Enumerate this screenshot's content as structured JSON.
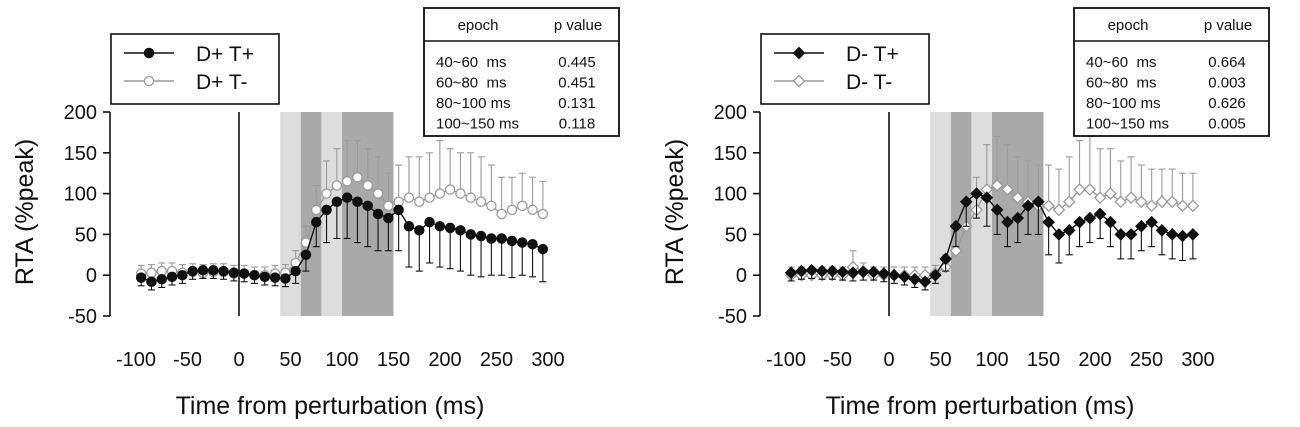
{
  "colors": {
    "ink": "#111111",
    "filled_series": "#111111",
    "open_series": "#9a9a9a",
    "shade_light": "#dddddd",
    "shade_dark": "#a9a9a9"
  },
  "chart_data": [
    {
      "type": "line",
      "xlabel": "Time from perturbation (ms)",
      "ylabel": "RTA (%peak)",
      "xlim": [
        -100,
        300
      ],
      "ylim": [
        -50,
        200
      ],
      "xticks": [
        -100,
        -50,
        0,
        50,
        100,
        150,
        200,
        250,
        300
      ],
      "yticks": [
        200,
        150,
        100,
        50,
        0,
        -50
      ],
      "epoch_shading": [
        {
          "from": 40,
          "to": 60,
          "tone": "light"
        },
        {
          "from": 60,
          "to": 80,
          "tone": "dark"
        },
        {
          "from": 80,
          "to": 100,
          "tone": "light"
        },
        {
          "from": 100,
          "to": 150,
          "tone": "dark"
        }
      ],
      "legend": [
        {
          "label": "D+ T+",
          "marker": "circle",
          "fill": "filled"
        },
        {
          "label": "D+ T-",
          "marker": "circle",
          "fill": "open"
        }
      ],
      "table": {
        "headers": [
          "epoch",
          "p value"
        ],
        "rows": [
          [
            "40~60  ms",
            "0.445"
          ],
          [
            "60~80  ms",
            "0.451"
          ],
          [
            "80~100 ms",
            "0.131"
          ],
          [
            "100~150 ms",
            "0.118"
          ]
        ]
      },
      "x": [
        -95,
        -85,
        -75,
        -65,
        -55,
        -45,
        -35,
        -25,
        -15,
        -5,
        5,
        15,
        25,
        35,
        45,
        55,
        65,
        75,
        85,
        95,
        105,
        115,
        125,
        135,
        145,
        155,
        165,
        175,
        185,
        195,
        205,
        215,
        225,
        235,
        245,
        255,
        265,
        275,
        285,
        295
      ],
      "series": [
        {
          "name": "D+ T+",
          "marker": "circle",
          "fill": "filled",
          "values": [
            -3,
            -8,
            -5,
            -2,
            0,
            5,
            6,
            6,
            5,
            3,
            2,
            0,
            -2,
            -3,
            -4,
            5,
            25,
            65,
            80,
            90,
            95,
            90,
            85,
            75,
            70,
            80,
            60,
            55,
            65,
            60,
            58,
            55,
            50,
            48,
            45,
            45,
            42,
            40,
            38,
            32
          ],
          "err": [
            10,
            10,
            10,
            10,
            10,
            10,
            10,
            10,
            10,
            10,
            10,
            10,
            10,
            10,
            10,
            15,
            20,
            30,
            40,
            45,
            50,
            50,
            50,
            45,
            40,
            50,
            50,
            50,
            50,
            50,
            50,
            50,
            50,
            50,
            45,
            45,
            45,
            40,
            40,
            40
          ]
        },
        {
          "name": "D+ T-",
          "marker": "circle",
          "fill": "open",
          "values": [
            2,
            3,
            5,
            5,
            3,
            4,
            3,
            4,
            4,
            2,
            2,
            0,
            0,
            2,
            3,
            15,
            40,
            80,
            100,
            110,
            115,
            120,
            110,
            100,
            85,
            90,
            95,
            90,
            95,
            100,
            105,
            100,
            95,
            90,
            85,
            75,
            80,
            85,
            80,
            75
          ],
          "err": [
            10,
            10,
            10,
            10,
            10,
            10,
            10,
            10,
            10,
            10,
            10,
            10,
            10,
            10,
            10,
            15,
            20,
            30,
            40,
            45,
            50,
            45,
            45,
            45,
            40,
            45,
            50,
            55,
            55,
            65,
            50,
            50,
            55,
            55,
            50,
            45,
            40,
            40,
            40,
            40
          ]
        }
      ]
    },
    {
      "type": "line",
      "xlabel": "Time from perturbation (ms)",
      "ylabel": "RTA (%peak)",
      "xlim": [
        -100,
        300
      ],
      "ylim": [
        -50,
        200
      ],
      "xticks": [
        -100,
        -50,
        0,
        50,
        100,
        150,
        200,
        250,
        300
      ],
      "yticks": [
        200,
        150,
        100,
        50,
        0,
        -50
      ],
      "epoch_shading": [
        {
          "from": 40,
          "to": 60,
          "tone": "light"
        },
        {
          "from": 60,
          "to": 80,
          "tone": "dark"
        },
        {
          "from": 80,
          "to": 100,
          "tone": "light"
        },
        {
          "from": 100,
          "to": 150,
          "tone": "dark"
        }
      ],
      "legend": [
        {
          "label": "D- T+",
          "marker": "diamond",
          "fill": "filled"
        },
        {
          "label": "D- T-",
          "marker": "diamond",
          "fill": "open"
        }
      ],
      "table": {
        "headers": [
          "epoch",
          "p value"
        ],
        "rows": [
          [
            "40~60  ms",
            "0.664"
          ],
          [
            "60~80  ms",
            "0.003"
          ],
          [
            "80~100 ms",
            "0.626"
          ],
          [
            "100~150 ms",
            "0.005"
          ]
        ]
      },
      "x": [
        -95,
        -85,
        -75,
        -65,
        -55,
        -45,
        -35,
        -25,
        -15,
        -5,
        5,
        15,
        25,
        35,
        45,
        55,
        65,
        75,
        85,
        95,
        105,
        115,
        125,
        135,
        145,
        155,
        165,
        175,
        185,
        195,
        205,
        215,
        225,
        235,
        245,
        255,
        265,
        275,
        285,
        295
      ],
      "series": [
        {
          "name": "D- T+",
          "marker": "diamond",
          "fill": "filled",
          "values": [
            3,
            5,
            6,
            5,
            5,
            4,
            3,
            4,
            4,
            2,
            0,
            -2,
            -5,
            -8,
            0,
            20,
            60,
            90,
            100,
            95,
            80,
            65,
            70,
            85,
            90,
            65,
            50,
            55,
            65,
            70,
            75,
            65,
            50,
            50,
            60,
            65,
            55,
            50,
            48,
            50
          ],
          "err": [
            10,
            10,
            10,
            10,
            10,
            10,
            10,
            10,
            10,
            10,
            10,
            10,
            10,
            10,
            10,
            15,
            25,
            30,
            30,
            35,
            30,
            30,
            30,
            35,
            40,
            40,
            35,
            30,
            30,
            30,
            30,
            30,
            30,
            30,
            30,
            30,
            30,
            30,
            30,
            30
          ]
        },
        {
          "name": "D- T-",
          "marker": "diamond",
          "fill": "open",
          "values": [
            0,
            0,
            0,
            0,
            0,
            0,
            10,
            5,
            0,
            0,
            0,
            0,
            0,
            0,
            2,
            10,
            30,
            60,
            80,
            105,
            110,
            105,
            95,
            90,
            85,
            85,
            80,
            90,
            105,
            105,
            95,
            100,
            90,
            95,
            90,
            85,
            90,
            90,
            85,
            85
          ],
          "err": [
            10,
            10,
            10,
            10,
            10,
            10,
            20,
            10,
            10,
            10,
            10,
            10,
            10,
            10,
            10,
            15,
            25,
            30,
            40,
            55,
            60,
            55,
            50,
            50,
            50,
            50,
            50,
            55,
            60,
            65,
            60,
            55,
            50,
            50,
            45,
            45,
            40,
            40,
            40,
            40
          ]
        }
      ]
    }
  ]
}
